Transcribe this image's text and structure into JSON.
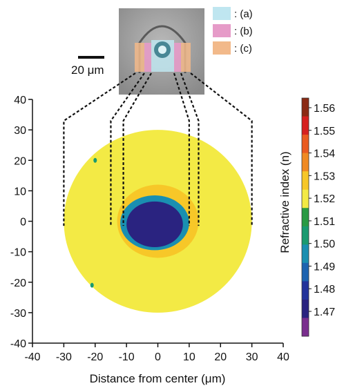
{
  "chart_data": {
    "type": "heatmap",
    "title": "",
    "xlabel": "Distance from center (μm)",
    "ylabel": "",
    "xlim": [
      -40,
      40
    ],
    "ylim": [
      -40,
      40
    ],
    "x_ticks": [
      "-40",
      "-30",
      "-20",
      "-10",
      "0",
      "10",
      "20",
      "30",
      "40"
    ],
    "y_ticks": [
      "40",
      "30",
      "20",
      "10",
      "0",
      "-10",
      "-20",
      "-30",
      "-40"
    ],
    "grid": false,
    "map": {
      "shape": "circle",
      "center": [
        0,
        0
      ],
      "radius": 30,
      "background_index": 1.525,
      "regions": [
        {
          "name": "core",
          "center": [
            -1,
            -1
          ],
          "radius_x": 9,
          "radius_y": 7.5,
          "index": 1.47
        },
        {
          "name": "core-shell",
          "center": [
            -1,
            -0.5
          ],
          "radius_x": 11,
          "radius_y": 9,
          "index": 1.5
        },
        {
          "name": "ring",
          "center": [
            0,
            0
          ],
          "radius_x": 13,
          "radius_y": 12,
          "index": 1.535
        }
      ],
      "spots": [
        {
          "center": [
            -20,
            20
          ],
          "index": 1.51
        },
        {
          "center": [
            -21,
            -21
          ],
          "index": 1.51
        }
      ]
    },
    "guide_lines_x": [
      -30,
      -15,
      -11,
      10,
      13,
      30
    ],
    "colorbar": {
      "title": "Refractive index (n)",
      "ticks": [
        "1.56",
        "1.55",
        "1.54",
        "1.53",
        "1.52",
        "1.51",
        "1.50",
        "1.49",
        "1.48",
        "1.47"
      ],
      "colors": [
        "#8b2a14",
        "#d6201f",
        "#ea5b20",
        "#f08a22",
        "#f7c728",
        "#f3ea45",
        "#2a9a44",
        "#1a9a70",
        "#1a8fb1",
        "#1d63b0",
        "#23339b",
        "#2a2380",
        "#7a2e8e"
      ]
    },
    "inset": {
      "scale_bar": "20 μm",
      "legend": [
        {
          "label": ": (a)",
          "color": "#bfe6f0"
        },
        {
          "label": ": (b)",
          "color": "#e69bc8"
        },
        {
          "label": ": (c)",
          "color": "#f2b98a"
        }
      ]
    }
  }
}
